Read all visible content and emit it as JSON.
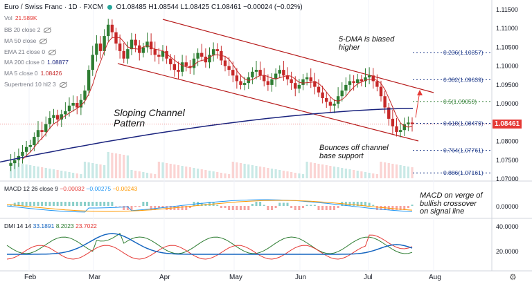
{
  "header": {
    "symbol": "Euro / Swiss Franc · 1D · FXCM",
    "o": "O1.08485",
    "h": "H1.08544",
    "l": "L1.08425",
    "c": "C1.08461",
    "chg": "−0.00024 (−0.02%)"
  },
  "indicators": {
    "vol": {
      "label": "Vol",
      "value": "21.589K"
    },
    "bb": {
      "label": "BB 20 close 2"
    },
    "ma50": {
      "label": "MA 50 close"
    },
    "ema21": {
      "label": "EMA 21 close 0"
    },
    "ma200": {
      "label": "MA 200 close 0",
      "value": "1.08877"
    },
    "ma5": {
      "label": "MA 5 close 0",
      "value": "1.08426"
    },
    "supertrend": {
      "label": "Supertrend 10 hl2 3"
    }
  },
  "macd": {
    "label": "MACD 12 26 close 9",
    "v1": "−0.00032",
    "v2": "−0.00275",
    "v3": "−0.00243"
  },
  "dmi": {
    "label": "DMI 14 14",
    "v1": "33.1891",
    "v2": "8.2023",
    "v3": "23.7022"
  },
  "annotations": {
    "channel": "Sloping Channel\nPattern",
    "dma": "5-DMA is biased\nhigher",
    "bounce": "Bounces off channel\nbase support",
    "macd": "MACD on verge of\nbullish crossover\non signal line"
  },
  "current_price": "1.08461",
  "colors": {
    "up": "#26a69a",
    "down": "#ef5350",
    "candle_up": "#2e7d32",
    "candle_down": "#c62828",
    "ma200": "#1a237e",
    "ma5": "#c62828",
    "channel": "#b71c1c",
    "fib": "#1e3a8a",
    "fib_green": "#2e7d32",
    "macd": "#2196f3",
    "signal": "#ff9800",
    "dmi_adx": "#1565c0",
    "dmi_plus": "#2e7d32",
    "dmi_minus": "#e53935"
  },
  "chart_data": {
    "type": "candlestick",
    "title": "Euro / Swiss Franc · 1D · FXCM",
    "xlabel": "",
    "ylabel": "",
    "ylim": [
      1.07,
      1.115
    ],
    "y_ticks": [
      "1.11500",
      "1.11000",
      "1.10500",
      "1.10000",
      "1.09500",
      "1.09000",
      "1.08500",
      "1.08000",
      "1.07500",
      "1.07000"
    ],
    "x_ticks": [
      "Feb",
      "Mar",
      "Apr",
      "May",
      "Jun",
      "Jul",
      "Aug"
    ],
    "fib_levels": [
      {
        "label": "0.236(1.10357)",
        "value": 1.10357
      },
      {
        "label": "0.382(1.09639)",
        "value": 1.09639
      },
      {
        "label": "0.5(1.09059)",
        "value": 1.09059
      },
      {
        "label": "0.618(1.08479)",
        "value": 1.08479
      },
      {
        "label": "0.764(1.07761)",
        "value": 1.07761
      },
      {
        "label": "0.886(1.07161)",
        "value": 1.07161
      }
    ],
    "ma200_end": 1.08877,
    "ma5_end": 1.08426,
    "close": 1.08461,
    "macd_ticks": [
      "0.00000"
    ],
    "dmi_ticks": [
      "40.0000",
      "20.0000"
    ],
    "series_note": "approximate daily closes Jan–Jul",
    "closes": [
      1.0735,
      1.0742,
      1.075,
      1.0761,
      1.0772,
      1.0785,
      1.079,
      1.0812,
      1.083,
      1.0825,
      1.0846,
      1.0862,
      1.087,
      1.0858,
      1.0872,
      1.088,
      1.0895,
      1.0902,
      1.089,
      1.091,
      1.0935,
      1.099,
      1.103,
      1.106,
      1.104,
      1.108,
      1.111,
      1.109,
      1.106,
      1.104,
      1.102,
      1.1045,
      1.107,
      1.1055,
      1.1035,
      1.105,
      1.1065,
      1.1045,
      1.103,
      1.1025,
      1.104,
      1.102,
      1.1005,
      1.099,
      1.0985,
      1.101,
      1.1,
      1.0995,
      1.102,
      1.1035,
      1.1025,
      1.101,
      1.103,
      1.1045,
      1.104,
      1.1015,
      1.1,
      1.099,
      1.0975,
      1.096,
      1.095,
      1.0955,
      1.097,
      1.0985,
      1.099,
      1.0975,
      1.096,
      1.095,
      1.0965,
      1.098,
      1.099,
      1.0975,
      1.0965,
      1.0955,
      1.094,
      1.095,
      1.0965,
      1.097,
      1.096,
      1.0945,
      1.093,
      1.0915,
      1.0905,
      1.0895,
      1.09,
      1.092,
      1.0935,
      1.095,
      1.096,
      1.0955,
      1.0965,
      1.096,
      1.097,
      1.0975,
      1.096,
      1.0945,
      1.092,
      1.089,
      1.086,
      1.084,
      1.0825,
      1.083,
      1.0845,
      1.085,
      1.0846
    ]
  }
}
